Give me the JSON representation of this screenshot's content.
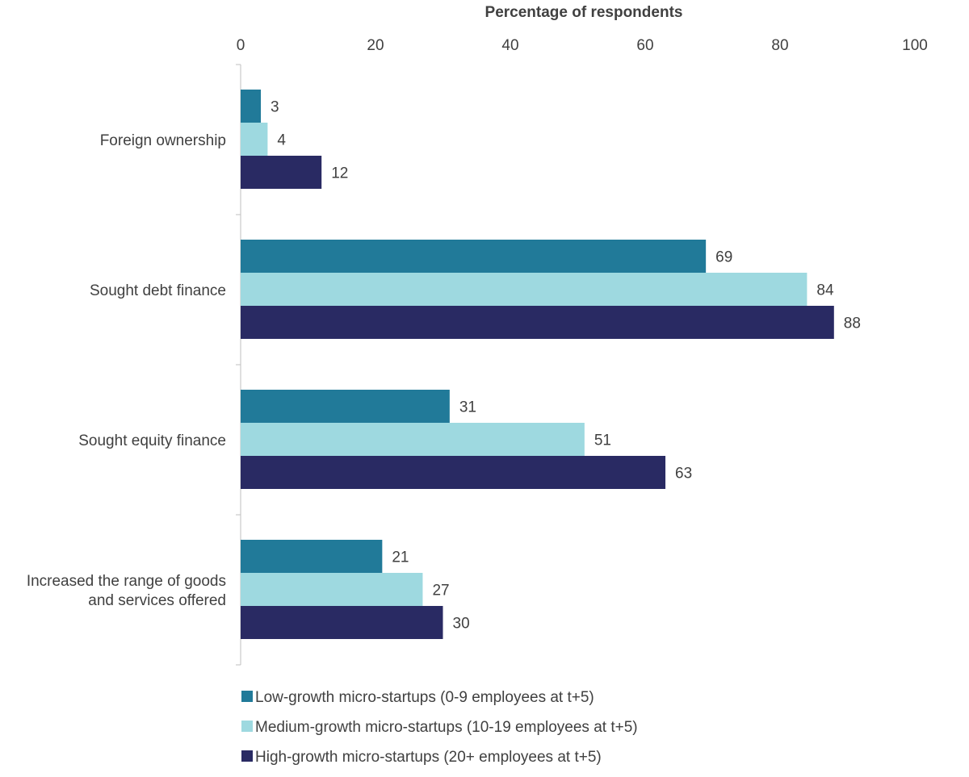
{
  "chart_data": {
    "type": "bar",
    "orientation": "horizontal",
    "title": "",
    "xlabel": "Percentage of respondents",
    "ylabel": "",
    "xlim": [
      0,
      100
    ],
    "xticks": [
      0,
      20,
      40,
      60,
      80,
      100
    ],
    "x_axis_position": "top",
    "grid": false,
    "legend_position": "bottom",
    "categories": [
      "Foreign ownership",
      "Sought debt finance",
      "Sought equity finance",
      "Increased the range of goods and services offered"
    ],
    "category_label_lines": [
      [
        "Foreign ownership"
      ],
      [
        "Sought debt finance"
      ],
      [
        "Sought equity finance"
      ],
      [
        "Increased the range of goods",
        "and services offered"
      ]
    ],
    "series": [
      {
        "name": "Low-growth micro-startups (0-9 employees at t+5)",
        "color": "#217a99",
        "values": [
          3,
          69,
          31,
          21
        ]
      },
      {
        "name": "Medium-growth micro-startups (10-19 employees at t+5)",
        "color": "#9ed9e0",
        "values": [
          4,
          84,
          51,
          27
        ]
      },
      {
        "name": "High-growth micro-startups (20+ employees at t+5)",
        "color": "#292a63",
        "values": [
          12,
          88,
          63,
          30
        ]
      }
    ]
  }
}
